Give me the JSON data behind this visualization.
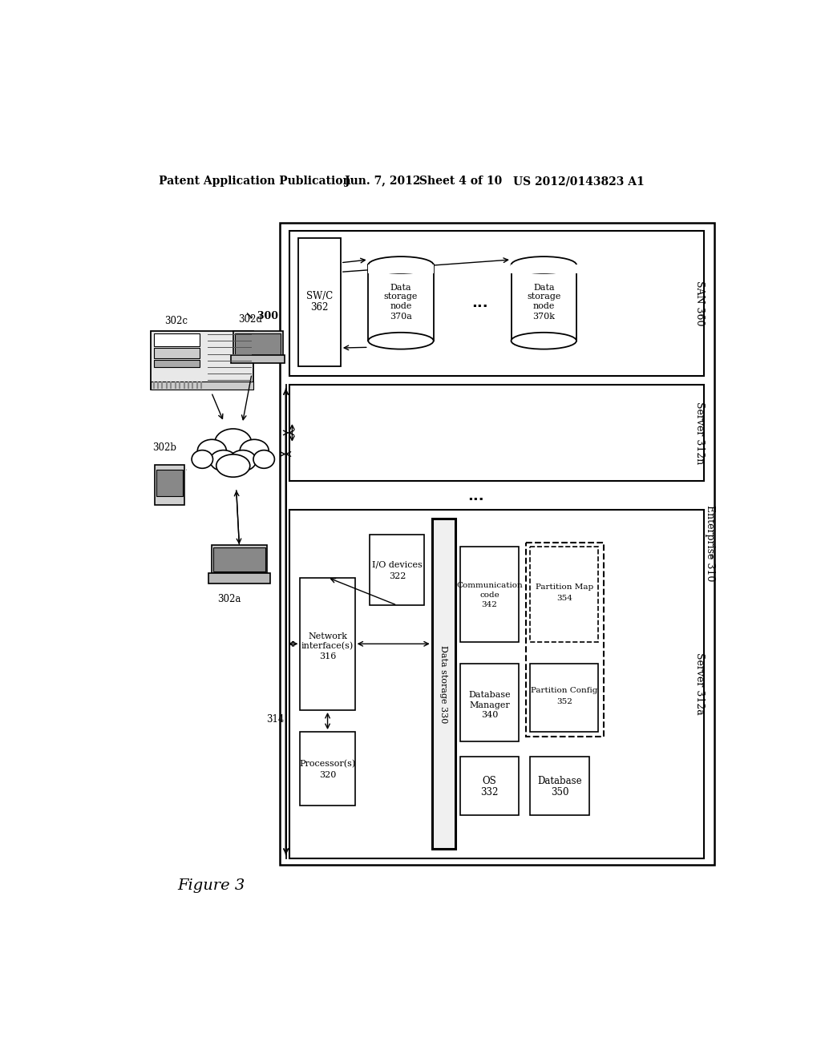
{
  "bg_color": "#ffffff",
  "header_left": "Patent Application Publication",
  "header_mid": "Jun. 7, 2012   Sheet 4 of 10",
  "header_right": "US 2012/0143823 A1",
  "figure_label": "Figure 3"
}
